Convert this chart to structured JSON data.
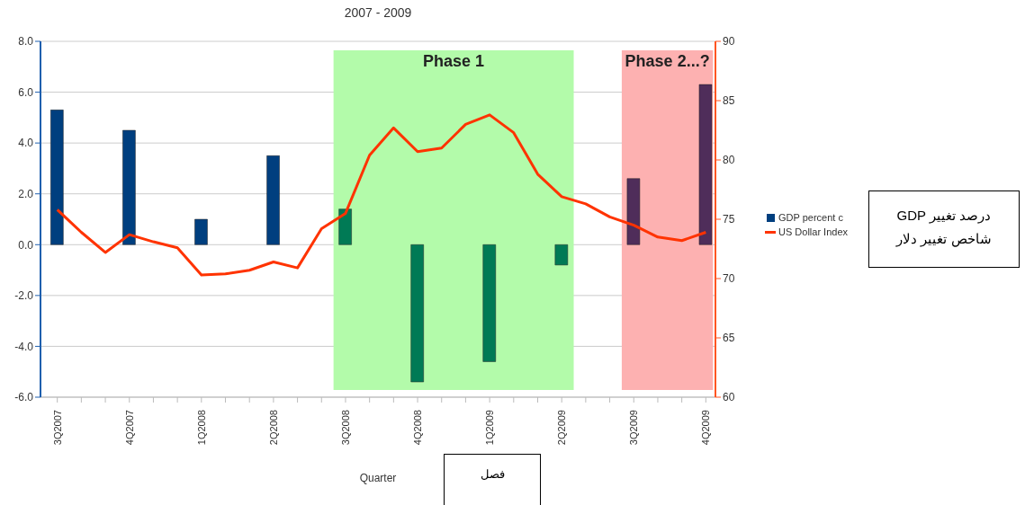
{
  "chart_data": {
    "type": "bar",
    "title": "2007 - 2009",
    "xlabel": "Quarter",
    "categories": [
      "3Q2007",
      null,
      null,
      "4Q2007",
      null,
      null,
      "1Q2008",
      null,
      null,
      "2Q2008",
      null,
      null,
      "3Q2008",
      null,
      null,
      "4Q2008",
      null,
      null,
      "1Q2009",
      null,
      null,
      "2Q2009",
      null,
      null,
      "3Q2009",
      null,
      null,
      "4Q2009"
    ],
    "ylim": [
      -6,
      8
    ],
    "yticks": [
      {
        "value": -6,
        "label": "-6.0"
      },
      {
        "value": -4,
        "label": "-4.0"
      },
      {
        "value": -2,
        "label": "-2.0"
      },
      {
        "value": 0,
        "label": "0.0"
      },
      {
        "value": 2,
        "label": "2.0"
      },
      {
        "value": 4,
        "label": "4.0"
      },
      {
        "value": 6,
        "label": "6.0"
      },
      {
        "value": 8,
        "label": "8.0"
      }
    ],
    "y2lim": [
      60,
      90
    ],
    "y2ticks": [
      60,
      65,
      70,
      75,
      80,
      85,
      90
    ],
    "series": [
      {
        "name": "GDP percent c",
        "color": "#003f7f",
        "values": [
          5.3,
          null,
          null,
          4.5,
          null,
          null,
          1.0,
          null,
          null,
          3.5,
          null,
          null,
          1.4,
          null,
          null,
          -5.4,
          null,
          null,
          -4.6,
          null,
          null,
          -0.8,
          null,
          null,
          2.6,
          null,
          null,
          6.3
        ],
        "colors": [
          "#003f7f",
          null,
          null,
          "#003f7f",
          null,
          null,
          "#003f7f",
          null,
          null,
          "#003f7f",
          null,
          null,
          "#007a55",
          null,
          null,
          "#007a55",
          null,
          null,
          "#007a55",
          null,
          null,
          "#007a55",
          null,
          null,
          "#4f2d5a",
          null,
          null,
          "#4f2d5a"
        ]
      },
      {
        "name": "US Dollar Index",
        "type": "line",
        "axis": "y2",
        "color": "#ff3300",
        "values": [
          75.8,
          73.9,
          72.2,
          73.7,
          73.1,
          72.6,
          70.3,
          70.4,
          70.7,
          71.4,
          70.9,
          74.2,
          75.5,
          80.4,
          82.7,
          80.7,
          81.0,
          83.0,
          83.8,
          82.3,
          78.8,
          76.9,
          76.3,
          75.2,
          74.5,
          73.5,
          73.2,
          73.9
        ]
      }
    ],
    "bands": [
      {
        "axis": "x",
        "from": "3Q2008",
        "to": "2Q2009",
        "label": "Phase 1",
        "color": "#b3fbaa"
      },
      {
        "axis": "x",
        "from": "3Q2009",
        "to": "4Q2009",
        "label": "Phase 2...?",
        "color": "#fdb1b1"
      }
    ],
    "annotations": [
      "درصد تغییر GDP",
      "شاخص تغییر دلار",
      "فصل"
    ],
    "grid": "y",
    "legend": "right",
    "marker": "none"
  }
}
